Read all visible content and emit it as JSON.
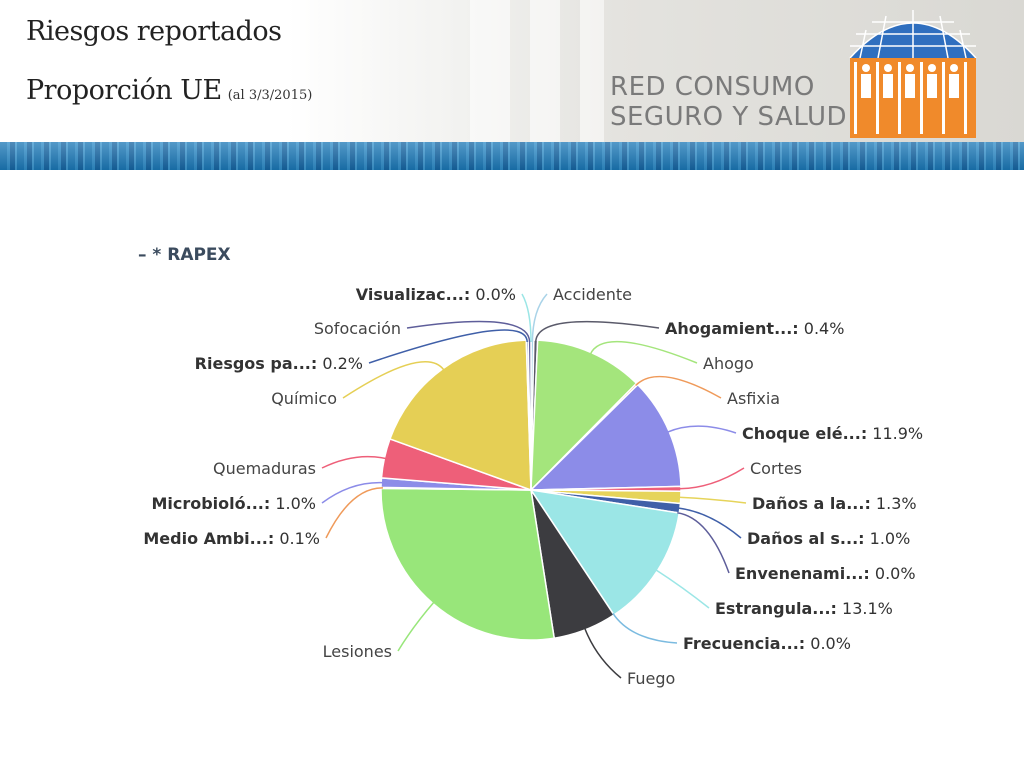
{
  "header": {
    "title_line1": "Riesgos reportados",
    "title_line2": "Proporción UE",
    "title_date": "(al 3/3/2015)",
    "brand_line1": "RED CONSUMO",
    "brand_line2": "SEGURO Y SALUD"
  },
  "colors": {
    "logo_blue": "#2f6fbf",
    "logo_orange": "#f08a2b",
    "stripe_blue": "#1a77b6"
  },
  "chart_data": {
    "type": "pie",
    "legend_title": "– * RAPEX",
    "slices": [
      {
        "name": "Accidente",
        "label": "Accidente",
        "value": 0.3,
        "color": "#a9d3e8"
      },
      {
        "name": "Ahogamient...",
        "label": "Ahogamient...: 0.4%",
        "value": 0.4,
        "color": "#5a5a6a"
      },
      {
        "name": "Ahogo",
        "label": "Ahogo",
        "value": 11.6,
        "color": "#a4e57c"
      },
      {
        "name": "Asfixia",
        "label": "Asfixia",
        "value": 0.2,
        "color": "#ef9a5a"
      },
      {
        "name": "Choque elé...",
        "label": "Choque elé...: 11.9%",
        "value": 11.9,
        "color": "#8c8ce8"
      },
      {
        "name": "Cortes",
        "label": "Cortes",
        "value": 0.5,
        "color": "#ee5f79"
      },
      {
        "name": "Daños a la...",
        "label": "Daños a la...: 1.3%",
        "value": 1.3,
        "color": "#e6d45a"
      },
      {
        "name": "Daños al s...",
        "label": "Daños al s...: 1.0%",
        "value": 1.0,
        "color": "#3f5fa8"
      },
      {
        "name": "Envenenami...",
        "label": "Envenenami...: 0.0%",
        "value": 0.0,
        "color": "#5e5e9a"
      },
      {
        "name": "Estrangula...",
        "label": "Estrangula...: 13.1%",
        "value": 13.1,
        "color": "#9be6e6"
      },
      {
        "name": "Frecuencia...",
        "label": "Frecuencia...: 0.0%",
        "value": 0.0,
        "color": "#7bbbe0"
      },
      {
        "name": "Fuego",
        "label": "Fuego",
        "value": 6.8,
        "color": "#3c3c40"
      },
      {
        "name": "Lesiones",
        "label": "Lesiones",
        "value": 27.4,
        "color": "#98e67a"
      },
      {
        "name": "Medio Ambi...",
        "label": "Medio Ambi...: 0.1%",
        "value": 0.1,
        "color": "#ef9a5a"
      },
      {
        "name": "Microbioló...",
        "label": "Microbioló...: 1.0%",
        "value": 1.0,
        "color": "#8c8ce8"
      },
      {
        "name": "Quemaduras",
        "label": "Quemaduras",
        "value": 4.2,
        "color": "#ee5f79"
      },
      {
        "name": "Químico",
        "label": "Químico",
        "value": 18.8,
        "color": "#e5cf55"
      },
      {
        "name": "Riesgos pa...",
        "label": "Riesgos pa...: 0.2%",
        "value": 0.2,
        "color": "#3f5fa8"
      },
      {
        "name": "Sofocación",
        "label": "Sofocación",
        "value": 0.3,
        "color": "#5e5e9a"
      },
      {
        "name": "Visualizac...",
        "label": "Visualizac...: 0.0%",
        "value": 0.0,
        "color": "#9be6e6"
      }
    ]
  }
}
